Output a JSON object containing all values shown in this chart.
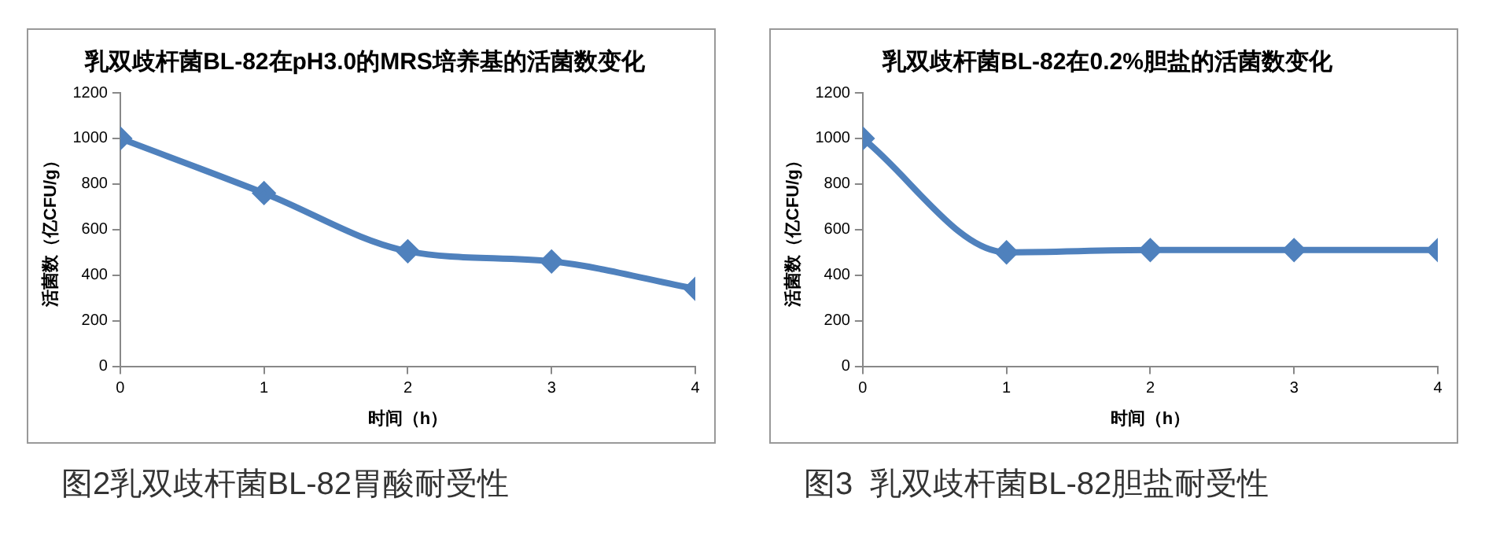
{
  "chart_data": [
    {
      "type": "line",
      "title": "乳双歧杆菌BL-82在pH3.0的MRS培养基的活菌数变化",
      "xlabel": "时间（h）",
      "ylabel": "活菌数（亿CFU/g）",
      "x": [
        0,
        1,
        2,
        3,
        4
      ],
      "series": [
        {
          "color": "#4f81bd",
          "values": [
            1000,
            760,
            505,
            460,
            340
          ]
        }
      ],
      "xlim": [
        0,
        4
      ],
      "xticks": [
        0,
        1,
        2,
        3,
        4
      ],
      "ylim": [
        0,
        1200
      ],
      "yticks": [
        0,
        200,
        400,
        600,
        800,
        1000,
        1200
      ],
      "grid": false,
      "marker": "diamond",
      "line_style": "solid",
      "annotations": [
        "图2乳双歧杆菌BL-82胃酸耐受性"
      ]
    },
    {
      "type": "line",
      "title": "乳双歧杆菌BL-82在0.2%胆盐的活菌数变化",
      "xlabel": "时间（h）",
      "ylabel": "活菌数（亿CFU/g）",
      "x": [
        0,
        1,
        2,
        3,
        4
      ],
      "series": [
        {
          "color": "#4f81bd",
          "values": [
            1000,
            500,
            510,
            510,
            510
          ]
        }
      ],
      "xlim": [
        0,
        4
      ],
      "xticks": [
        0,
        1,
        2,
        3,
        4
      ],
      "ylim": [
        0,
        1200
      ],
      "yticks": [
        0,
        200,
        400,
        600,
        800,
        1000,
        1200
      ],
      "grid": false,
      "marker": "diamond",
      "line_style": "solid",
      "annotations": [
        "图3  乳双歧杆菌BL-82胆盐耐受性"
      ]
    }
  ]
}
